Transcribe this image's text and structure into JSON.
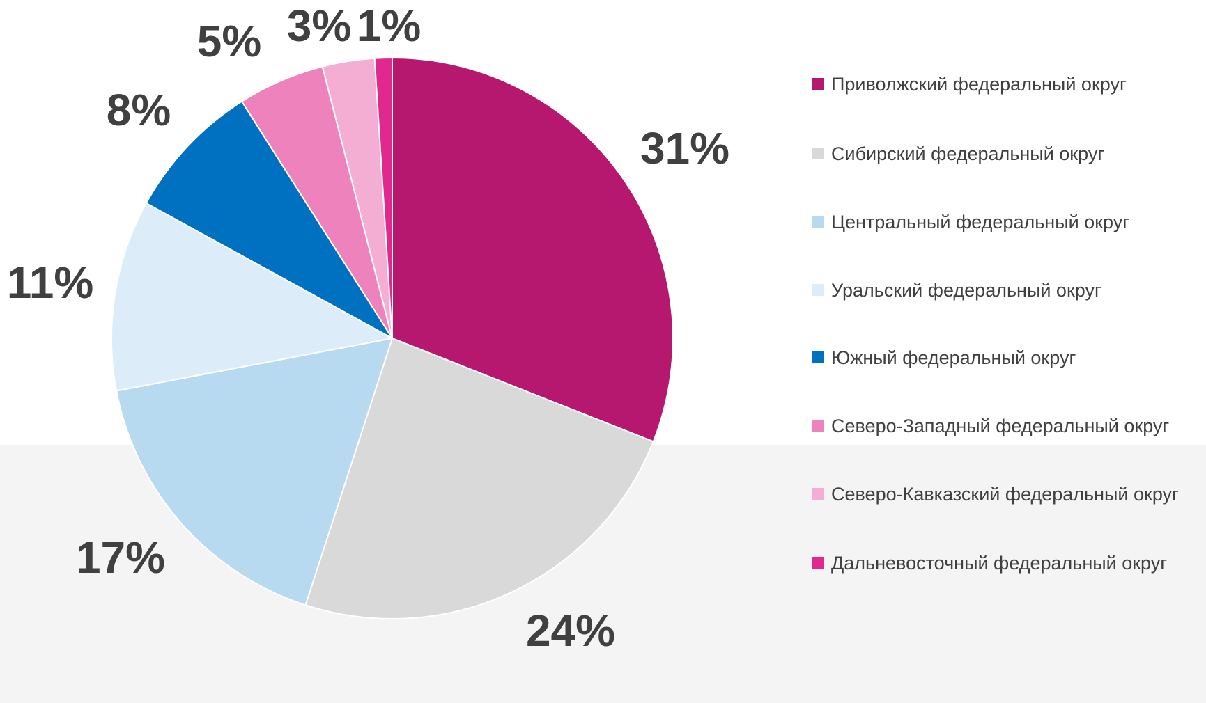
{
  "chart_data": {
    "type": "pie",
    "categories": [
      "Приволжский федеральный округ",
      "Сибирский федеральный округ",
      "Центральный федеральный округ",
      "Уральский федеральный округ",
      "Южный федеральный округ",
      "Северо-Западный федеральный округ",
      "Северо-Кавказский федеральный округ",
      "Дальневосточный федеральный округ"
    ],
    "values": [
      31,
      24,
      17,
      11,
      8,
      5,
      3,
      1
    ],
    "value_labels": [
      "31%",
      "24%",
      "17%",
      "11%",
      "8%",
      "5%",
      "3%",
      "1%"
    ],
    "colors": [
      "#b5186e",
      "#d9d9d9",
      "#b8daf0",
      "#dcecf8",
      "#0070c0",
      "#ee82bc",
      "#f4aed4",
      "#e0288f"
    ],
    "legend": "right"
  }
}
